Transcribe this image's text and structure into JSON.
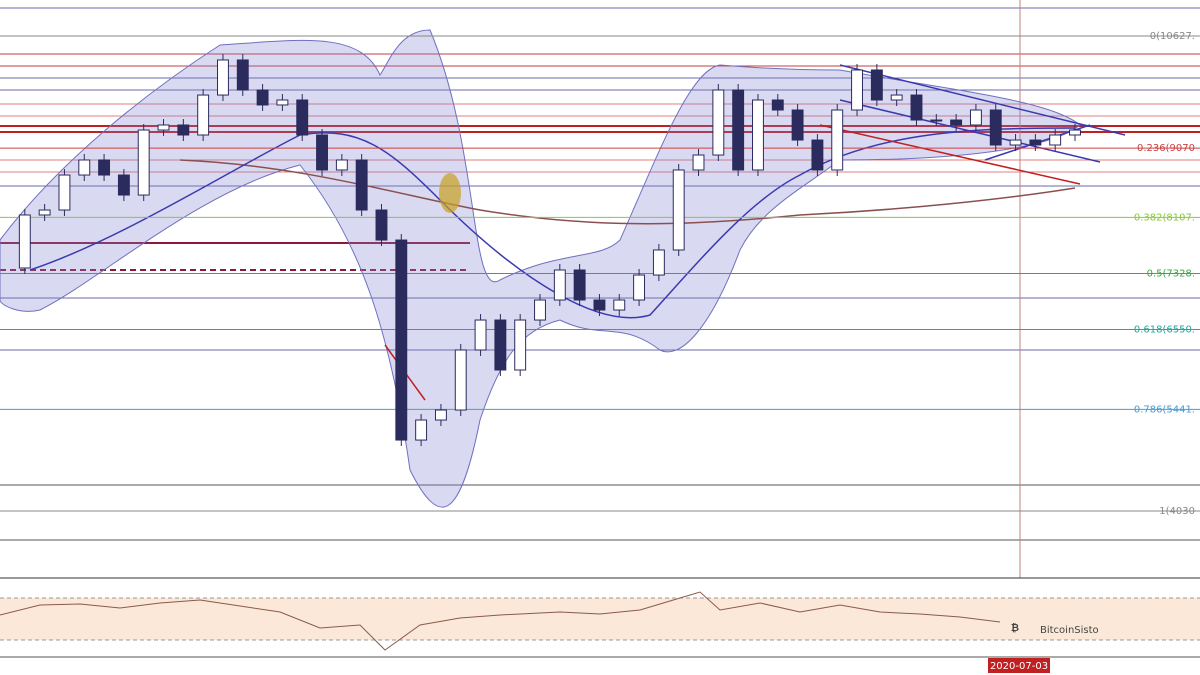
{
  "chart_data": {
    "type": "candlestick",
    "values": [
      7405,
      8141,
      8210,
      8696,
      8905,
      8696,
      8418,
      9321,
      9391,
      9252,
      9807,
      10294,
      9877,
      9669,
      9738,
      9252,
      8766,
      8905,
      8210,
      7793,
      5015,
      5293,
      5432,
      6266,
      6682,
      5988,
      6682,
      6960,
      7377,
      6960,
      6821,
      6960,
      7307,
      7655,
      8766,
      8974,
      9877,
      8766,
      9738,
      9599,
      9182,
      8766,
      9599,
      10155,
      9738,
      9807,
      9460,
      9460,
      9391,
      9599,
      9113,
      9182,
      9113,
      9252,
      9321
    ],
    "up_color": "#ffffff",
    "down_color": "#2b2b5e",
    "ylim": [
      3099,
      11127
    ],
    "fib_levels": [
      {
        "label": "0(10627.",
        "price": 10627,
        "color": "#888888"
      },
      {
        "label": "0.236(9070",
        "price": 9070,
        "color": "#d04040"
      },
      {
        "label": "0.382(8107.",
        "price": 8107,
        "color": "#8cc63f"
      },
      {
        "label": "0.5(7328.",
        "price": 7328,
        "color": "#3aa845"
      },
      {
        "label": "0.618(6550.",
        "price": 6550,
        "color": "#2aa39a"
      },
      {
        "label": "0.786(5441.",
        "price": 5441,
        "color": "#4a9ad0"
      },
      {
        "label": "1(4030",
        "price": 4030,
        "color": "#888888"
      }
    ],
    "logo": "BitcoinSisto",
    "date_label": "2020-07-03"
  }
}
